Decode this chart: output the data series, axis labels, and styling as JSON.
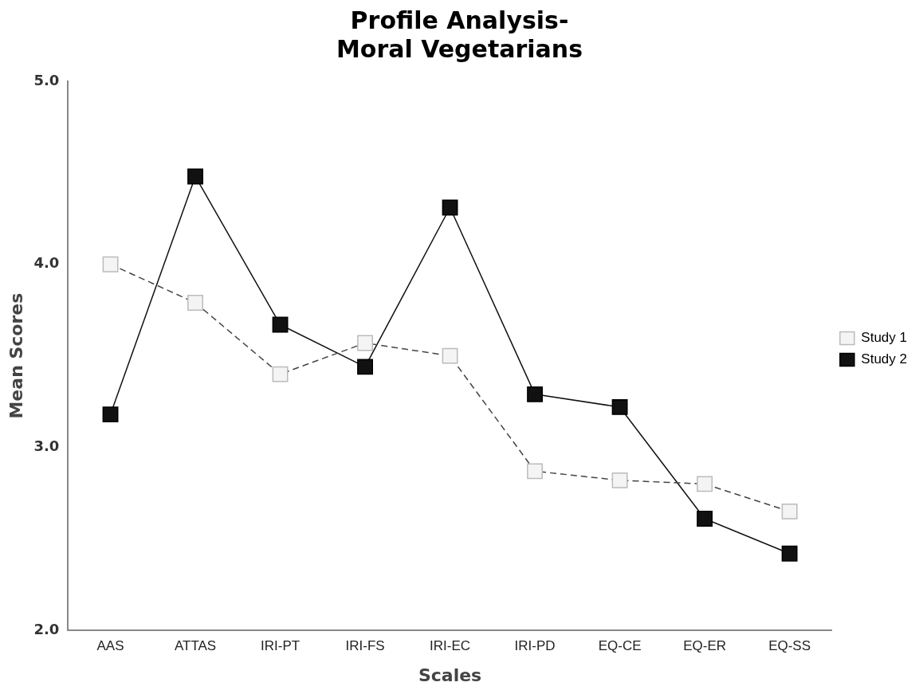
{
  "chart_data": {
    "type": "line",
    "title": "Profile Analysis-\nMoral Vegetarians",
    "xlabel": "Scales",
    "ylabel": "Mean Scores",
    "categories": [
      "AAS",
      "ATTAS",
      "IRI-PT",
      "IRI-FS",
      "IRI-EC",
      "IRI-PD",
      "EQ-CE",
      "EQ-ER",
      "EQ-SS"
    ],
    "series": [
      {
        "name": "Study 1",
        "color": "#f4f4f4",
        "line_style": "dashed",
        "values": [
          4.0,
          3.79,
          3.4,
          3.57,
          3.5,
          2.87,
          2.82,
          2.8,
          2.65
        ]
      },
      {
        "name": "Study 2",
        "color": "#111111",
        "line_style": "solid",
        "values": [
          3.18,
          4.48,
          3.67,
          3.44,
          4.31,
          3.29,
          3.22,
          2.61,
          2.42
        ]
      }
    ],
    "ylim": [
      2,
      5
    ],
    "yticks": [
      {
        "value": 2,
        "label": "2.0"
      },
      {
        "value": 3,
        "label": "3.0"
      },
      {
        "value": 4,
        "label": "4.0"
      },
      {
        "value": 5,
        "label": "5.0"
      }
    ],
    "grid": false,
    "legend": "right",
    "marker": "square"
  }
}
